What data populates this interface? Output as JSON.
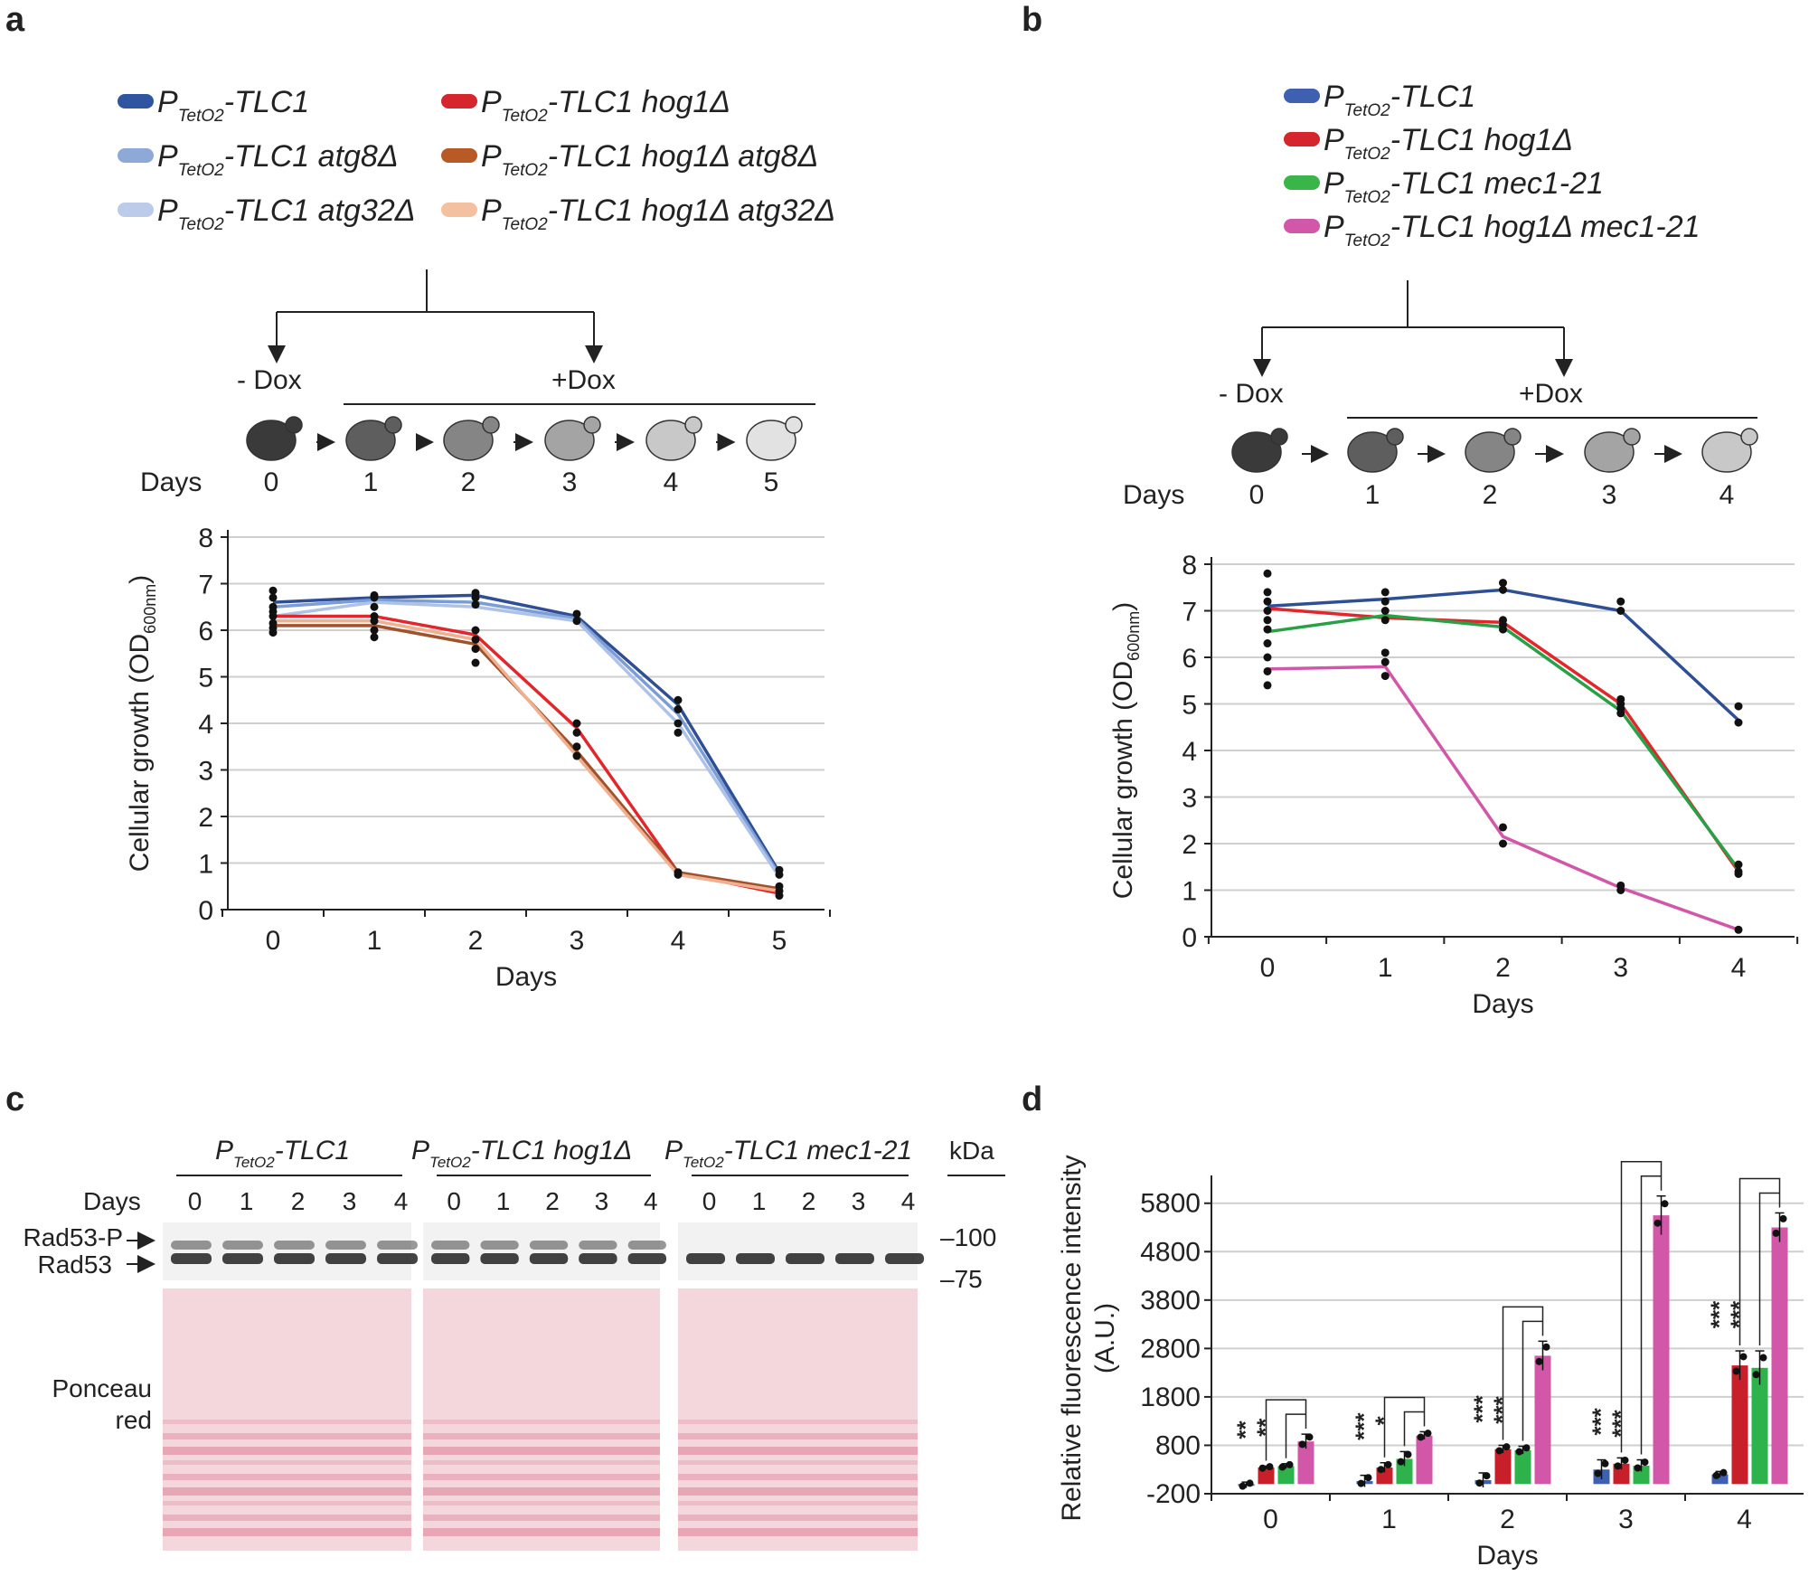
{
  "panels": {
    "a": "a",
    "b": "b",
    "c": "c",
    "d": "d"
  },
  "subscript": "TetO2",
  "legend_a": [
    {
      "prefix": "P",
      "suffix": "-TLC1",
      "color": "#2f55a0"
    },
    {
      "prefix": "P",
      "suffix": "-TLC1 atg8Δ",
      "color": "#8ea9d8"
    },
    {
      "prefix": "P",
      "suffix": "-TLC1 atg32Δ",
      "color": "#bccbea"
    },
    {
      "prefix": "P",
      "suffix": "-TLC1 hog1Δ",
      "color": "#d4262c"
    },
    {
      "prefix": "P",
      "suffix": "-TLC1 hog1Δ atg8Δ",
      "color": "#b85a26"
    },
    {
      "prefix": "P",
      "suffix": "-TLC1 hog1Δ atg32Δ",
      "color": "#f4c1a0"
    }
  ],
  "legend_b": [
    {
      "prefix": "P",
      "suffix": "-TLC1",
      "color": "#3f5fb0"
    },
    {
      "prefix": "P",
      "suffix": "-TLC1 hog1Δ",
      "color": "#d4262c"
    },
    {
      "prefix": "P",
      "suffix": "-TLC1 mec1-21",
      "color": "#3ab54a"
    },
    {
      "prefix": "P",
      "suffix": "-TLC1 hog1Δ mec1-21",
      "color": "#d257a8"
    }
  ],
  "scheme": {
    "minus_dox": "- Dox",
    "plus_dox": "+Dox",
    "days_label": "Days",
    "days_a": [
      "0",
      "1",
      "2",
      "3",
      "4",
      "5"
    ],
    "days_b": [
      "0",
      "1",
      "2",
      "3",
      "4"
    ]
  },
  "chart_data": [
    {
      "id": "a",
      "type": "line",
      "title": "",
      "xlabel": "Days",
      "ylabel": "Cellular growth",
      "ylabel_unit": "(OD",
      "ylabel_sub": "600nm",
      "ylabel_close": ")",
      "x": [
        0,
        1,
        2,
        3,
        4,
        5
      ],
      "xticks": [
        "0",
        "1",
        "2",
        "3",
        "4",
        "5"
      ],
      "yticks": [
        "0",
        "1",
        "2",
        "3",
        "4",
        "5",
        "6",
        "7",
        "8"
      ],
      "ylim": [
        0,
        8
      ],
      "series": [
        {
          "name": "PTetO2-TLC1",
          "color": "#2f4f95",
          "values": [
            6.6,
            6.7,
            6.75,
            6.3,
            4.4,
            0.8
          ]
        },
        {
          "name": "PTetO2-TLC1 atg8Δ",
          "color": "#7b9cd4",
          "values": [
            6.5,
            6.65,
            6.6,
            6.25,
            4.2,
            0.75
          ]
        },
        {
          "name": "PTetO2-TLC1 atg32Δ",
          "color": "#aec2e8",
          "values": [
            6.3,
            6.6,
            6.5,
            6.2,
            4.0,
            0.7
          ]
        },
        {
          "name": "PTetO2-TLC1 hog1Δ",
          "color": "#e1262c",
          "values": [
            6.3,
            6.3,
            5.9,
            3.9,
            0.8,
            0.35
          ]
        },
        {
          "name": "PTetO2-TLC1 hog1Δ atg8Δ",
          "color": "#a0522d",
          "values": [
            6.1,
            6.1,
            5.7,
            3.4,
            0.8,
            0.45
          ]
        },
        {
          "name": "PTetO2-TLC1 hog1Δ atg32Δ",
          "color": "#f0b090",
          "values": [
            6.2,
            6.2,
            5.8,
            3.3,
            0.75,
            0.4
          ]
        }
      ],
      "points": [
        [
          0,
          6.85
        ],
        [
          0,
          6.7
        ],
        [
          0,
          6.5
        ],
        [
          0,
          6.4
        ],
        [
          0,
          6.3
        ],
        [
          0,
          6.15
        ],
        [
          0,
          6.05
        ],
        [
          0,
          5.95
        ],
        [
          1,
          6.75
        ],
        [
          1,
          6.7
        ],
        [
          1,
          6.5
        ],
        [
          1,
          6.3
        ],
        [
          1,
          6.2
        ],
        [
          1,
          6.0
        ],
        [
          1,
          5.85
        ],
        [
          2,
          6.8
        ],
        [
          2,
          6.7
        ],
        [
          2,
          6.55
        ],
        [
          2,
          6.0
        ],
        [
          2,
          5.8
        ],
        [
          2,
          5.6
        ],
        [
          2,
          5.3
        ],
        [
          3,
          6.35
        ],
        [
          3,
          6.2
        ],
        [
          3,
          4.0
        ],
        [
          3,
          3.8
        ],
        [
          3,
          3.5
        ],
        [
          3,
          3.3
        ],
        [
          4,
          4.5
        ],
        [
          4,
          4.3
        ],
        [
          4,
          4.0
        ],
        [
          4,
          3.8
        ],
        [
          4,
          0.8
        ],
        [
          4,
          0.75
        ],
        [
          5,
          0.85
        ],
        [
          5,
          0.75
        ],
        [
          5,
          0.5
        ],
        [
          5,
          0.4
        ],
        [
          5,
          0.3
        ]
      ]
    },
    {
      "id": "b",
      "type": "line",
      "title": "",
      "xlabel": "Days",
      "ylabel": "Cellular growth",
      "ylabel_unit": "(OD",
      "ylabel_sub": "600nm",
      "ylabel_close": ")",
      "x": [
        0,
        1,
        2,
        3,
        4
      ],
      "xticks": [
        "0",
        "1",
        "2",
        "3",
        "4"
      ],
      "yticks": [
        "0",
        "1",
        "2",
        "3",
        "4",
        "5",
        "6",
        "7",
        "8"
      ],
      "ylim": [
        0,
        8
      ],
      "series": [
        {
          "name": "PTetO2-TLC1",
          "color": "#2f4f95",
          "values": [
            7.1,
            7.25,
            7.45,
            7.0,
            4.65
          ]
        },
        {
          "name": "PTetO2-TLC1 hog1Δ",
          "color": "#e1262c",
          "values": [
            7.05,
            6.85,
            6.75,
            5.0,
            1.4
          ]
        },
        {
          "name": "PTetO2-TLC1 mec1-21",
          "color": "#27a046",
          "values": [
            6.55,
            6.9,
            6.65,
            4.85,
            1.45
          ]
        },
        {
          "name": "PTetO2-TLC1 hog1Δ mec1-21",
          "color": "#d257a8",
          "values": [
            5.75,
            5.8,
            2.15,
            1.05,
            0.15
          ]
        }
      ],
      "points": [
        [
          0,
          7.8
        ],
        [
          0,
          7.4
        ],
        [
          0,
          7.2
        ],
        [
          0,
          7.0
        ],
        [
          0,
          6.8
        ],
        [
          0,
          6.6
        ],
        [
          0,
          6.3
        ],
        [
          0,
          6.0
        ],
        [
          0,
          5.7
        ],
        [
          0,
          5.4
        ],
        [
          1,
          7.4
        ],
        [
          1,
          7.2
        ],
        [
          1,
          7.0
        ],
        [
          1,
          6.8
        ],
        [
          1,
          6.1
        ],
        [
          1,
          5.9
        ],
        [
          1,
          5.6
        ],
        [
          2,
          7.6
        ],
        [
          2,
          7.45
        ],
        [
          2,
          6.8
        ],
        [
          2,
          6.7
        ],
        [
          2,
          6.6
        ],
        [
          2,
          2.35
        ],
        [
          2,
          2.0
        ],
        [
          3,
          7.2
        ],
        [
          3,
          7.0
        ],
        [
          3,
          5.1
        ],
        [
          3,
          5.0
        ],
        [
          3,
          4.9
        ],
        [
          3,
          4.8
        ],
        [
          3,
          1.1
        ],
        [
          3,
          1.0
        ],
        [
          4,
          4.95
        ],
        [
          4,
          4.6
        ],
        [
          4,
          1.55
        ],
        [
          4,
          1.4
        ],
        [
          4,
          1.35
        ],
        [
          4,
          0.15
        ]
      ]
    },
    {
      "id": "d",
      "type": "bar",
      "title": "",
      "xlabel": "Days",
      "ylabel": "Relative fluorescence intensity",
      "ylabel2": "(A.U.)",
      "categories": [
        "0",
        "1",
        "2",
        "3",
        "4"
      ],
      "yticks": [
        "-200",
        "800",
        "1800",
        "2800",
        "3800",
        "4800",
        "5800"
      ],
      "ylim": [
        -200,
        6150
      ],
      "series": [
        {
          "name": "PTetO2-TLC1",
          "color": "#3f5fb0",
          "values": [
            -20,
            60,
            80,
            300,
            200
          ],
          "err": [
            60,
            120,
            150,
            200,
            60
          ]
        },
        {
          "name": "PTetO2-TLC1 hog1Δ",
          "color": "#c8202a",
          "values": [
            340,
            340,
            720,
            420,
            2450
          ],
          "err": [
            30,
            100,
            80,
            120,
            300
          ]
        },
        {
          "name": "PTetO2-TLC1 mec1-21",
          "color": "#2eb24b",
          "values": [
            370,
            520,
            700,
            380,
            2400
          ],
          "err": [
            50,
            150,
            80,
            120,
            350
          ]
        },
        {
          "name": "PTetO2-TLC1 hog1Δ mec1-21",
          "color": "#d257a8",
          "values": [
            880,
            1000,
            2650,
            5550,
            5300
          ],
          "err": [
            150,
            80,
            300,
            400,
            300
          ]
        }
      ],
      "significance": [
        {
          "day": "0",
          "labels": [
            "**",
            "**"
          ]
        },
        {
          "day": "1",
          "labels": [
            "***",
            "*"
          ]
        },
        {
          "day": "2",
          "labels": [
            "***",
            "***"
          ]
        },
        {
          "day": "3",
          "labels": [
            "***",
            "***"
          ]
        },
        {
          "day": "4",
          "labels": [
            "***",
            "***"
          ]
        }
      ]
    }
  ],
  "blot": {
    "group_labels": [
      {
        "prefix": "P",
        "suffix": "-TLC1"
      },
      {
        "prefix": "P",
        "suffix": "-TLC1 hog1Δ"
      },
      {
        "prefix": "P",
        "suffix": "-TLC1 mec1-21"
      }
    ],
    "kda": "kDa",
    "days_label": "Days",
    "lane_days": [
      "0",
      "1",
      "2",
      "3",
      "4"
    ],
    "band_labels": [
      "Rad53-P",
      "Rad53"
    ],
    "markers": [
      "100",
      "75"
    ],
    "ponceau": [
      "Ponceau",
      "red"
    ]
  }
}
